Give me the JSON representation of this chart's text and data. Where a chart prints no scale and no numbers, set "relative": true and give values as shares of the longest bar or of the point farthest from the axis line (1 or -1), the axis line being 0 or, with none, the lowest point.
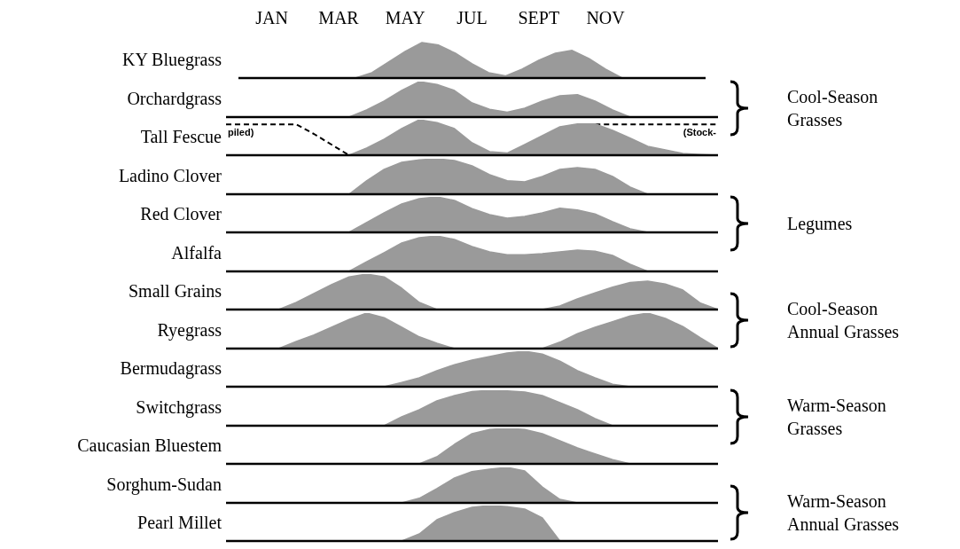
{
  "chart_data": [
    {
      "type": "area",
      "ylabel": "KY Bluegrass",
      "relative": true,
      "tick_labels": "x",
      "color": "#9a9a9a",
      "annotations": [
        "Cool-Season Grasses"
      ],
      "categories": [
        null,
        null,
        "JAN",
        null,
        null,
        null,
        "MAR",
        null,
        null,
        null,
        "MAY",
        null,
        null,
        null,
        "JUL",
        null,
        null,
        null,
        "SEPT",
        null,
        null,
        null,
        "NOV",
        null,
        null,
        null,
        null,
        null,
        null
      ],
      "values": [
        0,
        0,
        0,
        0,
        0,
        0,
        0,
        0,
        0.15,
        0.45,
        0.75,
        1,
        0.93,
        0.7,
        0.4,
        0.15,
        0.06,
        0.25,
        0.5,
        0.7,
        0.78,
        0.55,
        0.25,
        0,
        0,
        0,
        0,
        0,
        0
      ]
    },
    {
      "type": "area",
      "ylabel": "Orchardgrass",
      "relative": true,
      "tick_labels": false,
      "color": "#9a9a9a",
      "categories": [
        null,
        null,
        null,
        null,
        null,
        null,
        null,
        null,
        null,
        null,
        null,
        null,
        null,
        null,
        null,
        null,
        null,
        null,
        null,
        null,
        null,
        null,
        null,
        null,
        null,
        null,
        null,
        null,
        null
      ],
      "values": [
        0,
        0,
        0,
        0,
        0,
        0,
        0,
        0,
        0.2,
        0.45,
        0.75,
        1,
        0.92,
        0.75,
        0.4,
        0.22,
        0.14,
        0.25,
        0.45,
        0.6,
        0.63,
        0.45,
        0.2,
        0,
        0,
        0,
        0,
        0,
        0
      ]
    },
    {
      "type": "area",
      "ylabel": "Tall Fescue",
      "relative": true,
      "tick_labels": false,
      "annotations": [
        "piled)",
        "(Stock-"
      ],
      "categories": [
        null,
        null,
        null,
        null,
        null,
        null,
        null,
        null,
        null,
        null,
        null,
        null,
        null,
        null,
        null,
        null,
        null,
        null,
        null,
        null,
        null,
        null,
        null,
        null,
        null,
        null,
        null,
        null,
        null
      ],
      "series": [
        {
          "color": "#9a9a9a",
          "values": [
            0,
            0,
            0,
            0,
            0,
            0,
            0,
            0,
            0.2,
            0.45,
            0.75,
            1,
            0.92,
            0.75,
            0.35,
            0.1,
            0.06,
            0.3,
            0.55,
            0.8,
            0.88,
            0.88,
            0.7,
            0.48,
            0.25,
            0.15,
            0.05,
            0.02,
            0
          ]
        },
        {
          "type": "line",
          "line_style": "dashed",
          "color": "#000000",
          "values": [
            0.87,
            0.87,
            0.87,
            0.87,
            0.87,
            0.6,
            0.3,
            0,
            null,
            null,
            null,
            null,
            null,
            null,
            null,
            null,
            null,
            null,
            null,
            null,
            null,
            0.87,
            0.87,
            0.87,
            0.87,
            0.87,
            0.87,
            0.87,
            0.87
          ]
        }
      ]
    },
    {
      "type": "area",
      "ylabel": "Ladino Clover",
      "relative": true,
      "tick_labels": false,
      "color": "#9a9a9a",
      "annotations": [
        "Legumes"
      ],
      "categories": [
        null,
        null,
        null,
        null,
        null,
        null,
        null,
        null,
        null,
        null,
        null,
        null,
        null,
        null,
        null,
        null,
        null,
        null,
        null,
        null,
        null,
        null,
        null,
        null,
        null,
        null,
        null,
        null,
        null
      ],
      "values": [
        0,
        0,
        0,
        0,
        0,
        0,
        0,
        0,
        0.38,
        0.7,
        0.9,
        0.97,
        1,
        0.95,
        0.8,
        0.55,
        0.38,
        0.35,
        0.5,
        0.7,
        0.75,
        0.7,
        0.5,
        0.2,
        0,
        0,
        0,
        0,
        0
      ]
    },
    {
      "type": "area",
      "ylabel": "Red Clover",
      "relative": true,
      "tick_labels": false,
      "color": "#9a9a9a",
      "categories": [
        null,
        null,
        null,
        null,
        null,
        null,
        null,
        null,
        null,
        null,
        null,
        null,
        null,
        null,
        null,
        null,
        null,
        null,
        null,
        null,
        null,
        null,
        null,
        null,
        null,
        null,
        null,
        null,
        null
      ],
      "values": [
        0,
        0,
        0,
        0,
        0,
        0,
        0,
        0,
        0.28,
        0.55,
        0.8,
        0.95,
        1,
        0.9,
        0.67,
        0.5,
        0.4,
        0.45,
        0.55,
        0.68,
        0.63,
        0.52,
        0.3,
        0.1,
        0,
        0,
        0,
        0,
        0
      ]
    },
    {
      "type": "area",
      "ylabel": "Alfalfa",
      "relative": true,
      "tick_labels": false,
      "color": "#9a9a9a",
      "categories": [
        null,
        null,
        null,
        null,
        null,
        null,
        null,
        null,
        null,
        null,
        null,
        null,
        null,
        null,
        null,
        null,
        null,
        null,
        null,
        null,
        null,
        null,
        null,
        null,
        null,
        null,
        null,
        null,
        null
      ],
      "values": [
        0,
        0,
        0,
        0,
        0,
        0,
        0,
        0,
        0.27,
        0.53,
        0.8,
        0.95,
        1,
        0.9,
        0.7,
        0.55,
        0.47,
        0.47,
        0.5,
        0.55,
        0.6,
        0.57,
        0.45,
        0.2,
        0,
        0,
        0,
        0,
        0
      ]
    },
    {
      "type": "area",
      "ylabel": "Small Grains",
      "relative": true,
      "tick_labels": false,
      "color": "#9a9a9a",
      "annotations": [
        "Cool-Season Annual Grasses"
      ],
      "categories": [
        null,
        null,
        null,
        null,
        null,
        null,
        null,
        null,
        null,
        null,
        null,
        null,
        null,
        null,
        null,
        null,
        null,
        null,
        null,
        null,
        null,
        null,
        null,
        null,
        null,
        null,
        null,
        null,
        null
      ],
      "values": [
        0,
        0,
        0,
        0,
        0.2,
        0.45,
        0.7,
        0.92,
        1,
        0.92,
        0.6,
        0.2,
        0,
        0,
        0,
        0,
        0,
        0,
        0,
        0.1,
        0.3,
        0.47,
        0.63,
        0.76,
        0.8,
        0.72,
        0.55,
        0.18,
        0
      ]
    },
    {
      "type": "area",
      "ylabel": "Ryegrass",
      "relative": true,
      "tick_labels": false,
      "color": "#9a9a9a",
      "categories": [
        null,
        null,
        null,
        null,
        null,
        null,
        null,
        null,
        null,
        null,
        null,
        null,
        null,
        null,
        null,
        null,
        null,
        null,
        null,
        null,
        null,
        null,
        null,
        null,
        null,
        null,
        null,
        null,
        null
      ],
      "values": [
        0,
        0,
        0,
        0,
        0.2,
        0.38,
        0.6,
        0.82,
        1,
        0.87,
        0.6,
        0.33,
        0.15,
        0,
        0,
        0,
        0,
        0,
        0,
        0.18,
        0.42,
        0.6,
        0.76,
        0.92,
        1,
        0.85,
        0.62,
        0.3,
        0
      ]
    },
    {
      "type": "area",
      "ylabel": "Bermudagrass",
      "relative": true,
      "tick_labels": false,
      "color": "#9a9a9a",
      "annotations": [
        "Warm-Season Grasses"
      ],
      "categories": [
        null,
        null,
        null,
        null,
        null,
        null,
        null,
        null,
        null,
        null,
        null,
        null,
        null,
        null,
        null,
        null,
        null,
        null,
        null,
        null,
        null,
        null,
        null,
        null,
        null,
        null,
        null,
        null,
        null
      ],
      "values": [
        0,
        0,
        0,
        0,
        0,
        0,
        0,
        0,
        0,
        0,
        0.12,
        0.25,
        0.45,
        0.62,
        0.75,
        0.85,
        0.95,
        1,
        0.92,
        0.72,
        0.45,
        0.25,
        0.07,
        0,
        0,
        0,
        0,
        0,
        0
      ]
    },
    {
      "type": "area",
      "ylabel": "Switchgrass",
      "relative": true,
      "tick_labels": false,
      "color": "#9a9a9a",
      "categories": [
        null,
        null,
        null,
        null,
        null,
        null,
        null,
        null,
        null,
        null,
        null,
        null,
        null,
        null,
        null,
        null,
        null,
        null,
        null,
        null,
        null,
        null,
        null,
        null,
        null,
        null,
        null,
        null,
        null
      ],
      "values": [
        0,
        0,
        0,
        0,
        0,
        0,
        0,
        0,
        0,
        0,
        0.25,
        0.45,
        0.7,
        0.85,
        0.96,
        1,
        0.98,
        0.95,
        0.85,
        0.65,
        0.45,
        0.2,
        0,
        0,
        0,
        0,
        0,
        0,
        0
      ]
    },
    {
      "type": "area",
      "ylabel": "Caucasian Bluestem",
      "relative": true,
      "tick_labels": false,
      "color": "#9a9a9a",
      "categories": [
        null,
        null,
        null,
        null,
        null,
        null,
        null,
        null,
        null,
        null,
        null,
        null,
        null,
        null,
        null,
        null,
        null,
        null,
        null,
        null,
        null,
        null,
        null,
        null,
        null,
        null,
        null,
        null,
        null
      ],
      "values": [
        0,
        0,
        0,
        0,
        0,
        0,
        0,
        0,
        0,
        0,
        0,
        0,
        0.2,
        0.55,
        0.85,
        0.97,
        1,
        0.97,
        0.85,
        0.65,
        0.45,
        0.28,
        0.12,
        0,
        0,
        0,
        0,
        0,
        0
      ]
    },
    {
      "type": "area",
      "ylabel": "Sorghum-Sudan",
      "relative": true,
      "tick_labels": false,
      "color": "#9a9a9a",
      "annotations": [
        "Warm-Season Annual Grasses"
      ],
      "categories": [
        null,
        null,
        null,
        null,
        null,
        null,
        null,
        null,
        null,
        null,
        null,
        null,
        null,
        null,
        null,
        null,
        null,
        null,
        null,
        null,
        null,
        null,
        null,
        null,
        null,
        null,
        null,
        null,
        null
      ],
      "values": [
        0,
        0,
        0,
        0,
        0,
        0,
        0,
        0,
        0,
        0,
        0,
        0.13,
        0.4,
        0.7,
        0.88,
        0.95,
        1,
        0.9,
        0.45,
        0.1,
        0,
        0,
        0,
        0,
        0,
        0,
        0,
        0,
        0
      ]
    },
    {
      "type": "area",
      "ylabel": "Pearl Millet",
      "relative": true,
      "tick_labels": false,
      "color": "#9a9a9a",
      "categories": [
        null,
        null,
        null,
        null,
        null,
        null,
        null,
        null,
        null,
        null,
        null,
        null,
        null,
        null,
        null,
        null,
        null,
        null,
        null,
        null,
        null,
        null,
        null,
        null,
        null,
        null,
        null,
        null,
        null
      ],
      "values": [
        0,
        0,
        0,
        0,
        0,
        0,
        0,
        0,
        0,
        0,
        0,
        0.2,
        0.6,
        0.8,
        0.95,
        1,
        0.97,
        0.9,
        0.65,
        0,
        0,
        0,
        0,
        0,
        0,
        0,
        0,
        0,
        0
      ]
    }
  ]
}
